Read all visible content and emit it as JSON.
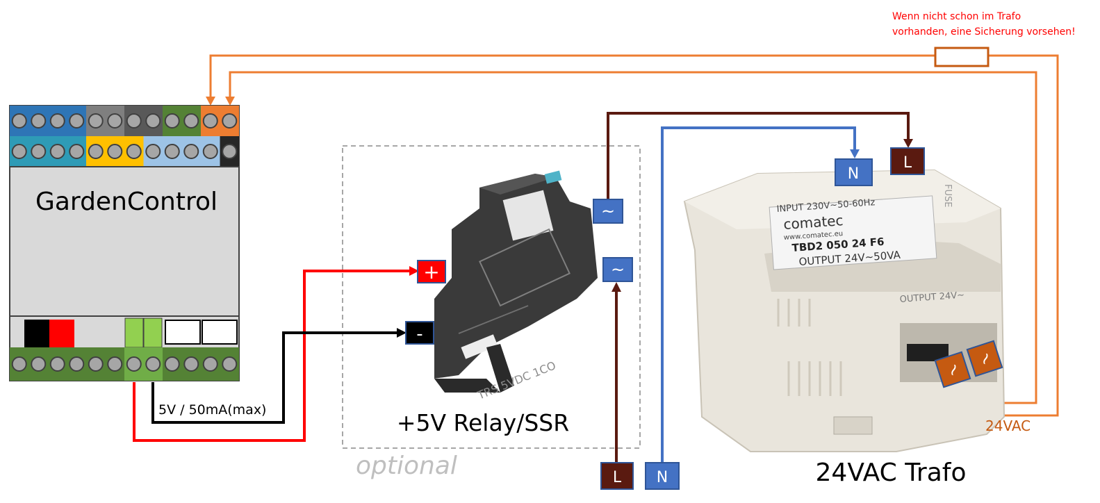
{
  "note": {
    "line1": "Wenn nicht schon im Trafo",
    "line2": "vorhanden, eine Sicherung vorsehen!"
  },
  "controller": {
    "title": "GardenControl",
    "output_label": "5V / 50mA(max)"
  },
  "relay": {
    "caption": "+5V Relay/SSR",
    "optional_label": "optional",
    "model_text": "TRS 5VDC 1CO",
    "plus_label": "+",
    "minus_label": "-",
    "ac_label_1": "~",
    "ac_label_2": "~"
  },
  "mains": {
    "l_bottom": "L",
    "n_bottom": "N",
    "n_top": "N",
    "l_top": "L"
  },
  "transformer": {
    "caption": "24VAC Trafo",
    "output_label": "24VAC",
    "brand": "comatec",
    "website": "www.comatec.eu",
    "input_text": "INPUT 230V~50-60Hz",
    "model": "TBD2 050 24 F6",
    "output_text": "OUTPUT 24V~50VA",
    "fuse_text": "FUSE",
    "side_output_text": "OUTPUT 24V~",
    "terminal_1": "~",
    "terminal_2": "~"
  },
  "colors": {
    "l_wire": "#5a1a10",
    "n_wire": "#4472c4",
    "ac_wire": "#ed7d31",
    "plus_wire": "#ff0000",
    "minus_wire": "#000000",
    "trafo_terminal": "#c55a11"
  }
}
